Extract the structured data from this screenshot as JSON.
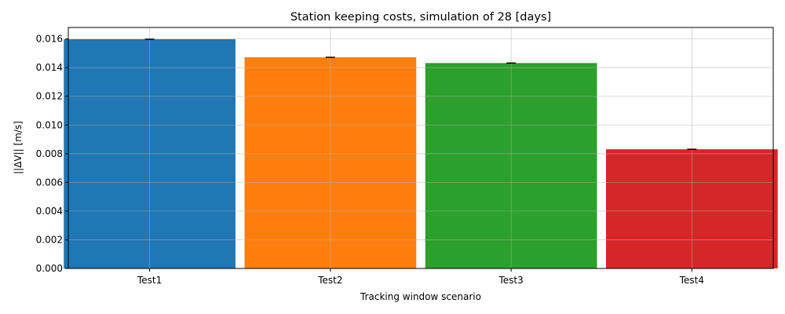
{
  "chart_data": {
    "type": "bar",
    "title": "Station keeping costs, simulation of 28 [days]",
    "xlabel": "Tracking window scenario",
    "ylabel": "||ΔV|| [m/s]",
    "categories": [
      "Test1",
      "Test2",
      "Test3",
      "Test4"
    ],
    "values": [
      0.01598,
      0.01472,
      0.01432,
      0.00831
    ],
    "colors": [
      "#1f77b4",
      "#ff7f0e",
      "#2ca02c",
      "#d62728"
    ],
    "error_bar_color": "#000000",
    "ylim": [
      0,
      0.0168
    ],
    "yticks": [
      0.0,
      0.002,
      0.004,
      0.006,
      0.008,
      0.01,
      0.012,
      0.014,
      0.016
    ],
    "ytick_labels": [
      "0.000",
      "0.002",
      "0.004",
      "0.006",
      "0.008",
      "0.010",
      "0.012",
      "0.014",
      "0.016"
    ],
    "grid": true,
    "legend": "none"
  }
}
